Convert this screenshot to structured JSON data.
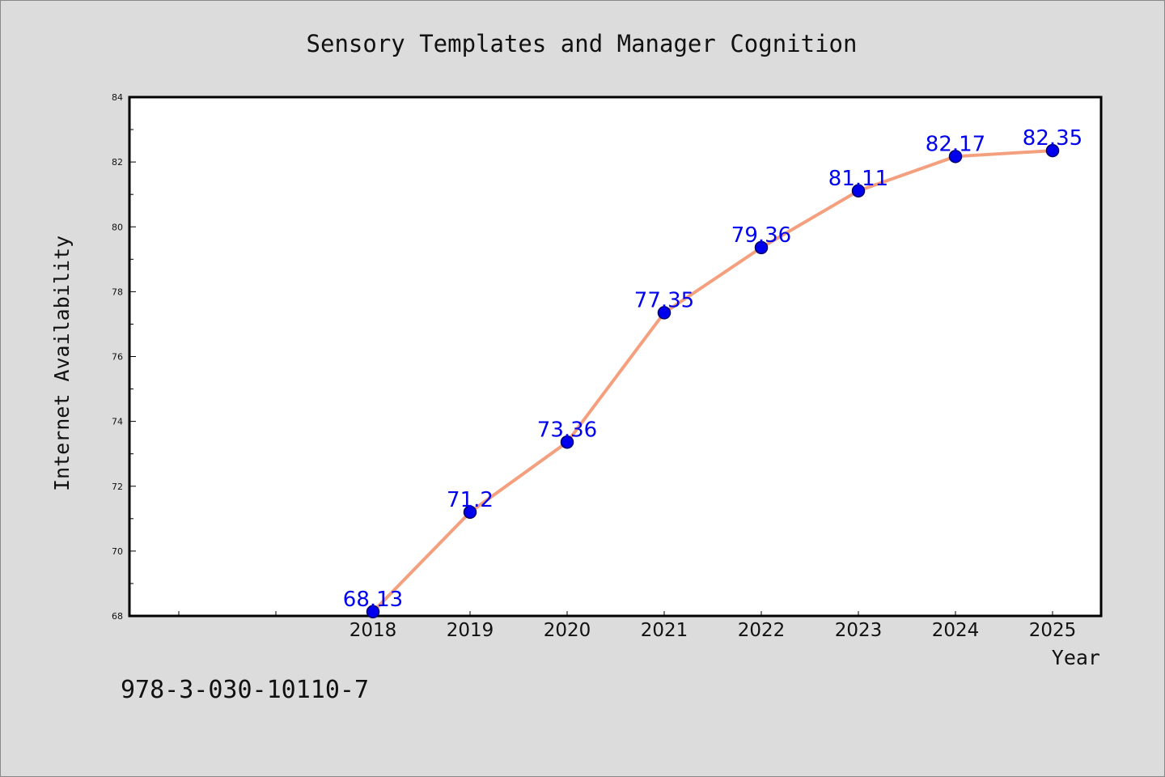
{
  "chart_data": {
    "type": "line",
    "title": "Sensory Templates and Manager Cognition",
    "xlabel": "Year",
    "ylabel": "Internet Availability",
    "categories": [
      "2018",
      "2019",
      "2020",
      "2021",
      "2022",
      "2023",
      "2024",
      "2025"
    ],
    "series": [
      {
        "values": [
          68.13,
          71.2,
          73.36,
          77.35,
          79.36,
          81.11,
          82.17,
          82.35
        ],
        "data_labels": [
          "68.13",
          "71.2",
          "73.36",
          "77.35",
          "79.36",
          "81.11",
          "82.17",
          "82.35"
        ]
      }
    ],
    "ylim": [
      68,
      84
    ],
    "yticks": [
      68,
      70,
      72,
      74,
      76,
      78,
      80,
      82,
      84
    ],
    "x_slot_count": 10,
    "x_first_category_slot": 2,
    "grid": false,
    "legend": "none",
    "colors": {
      "line": "#f4a07e",
      "marker_fill": "#0000ee",
      "marker_edge": "#00006a",
      "data_label": "#0000ee",
      "plot_background": "#ffffff",
      "figure_background": "#dcdcdc",
      "axis": "#000000"
    }
  },
  "footer": {
    "code": "978-3-030-10110-7"
  }
}
